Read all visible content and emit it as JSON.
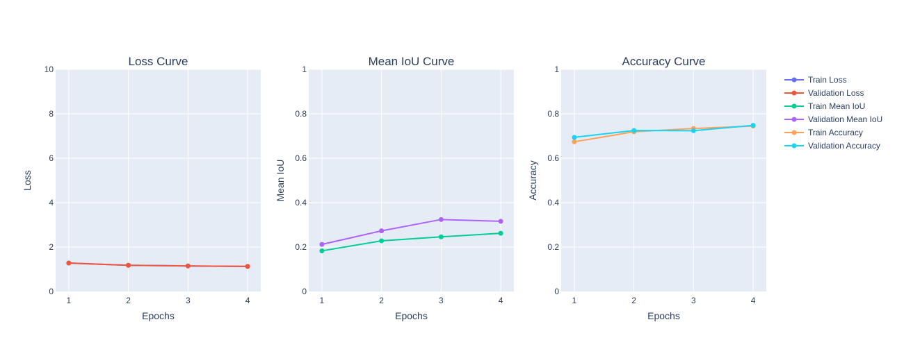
{
  "chart_data": [
    {
      "type": "line",
      "title": "Loss Curve",
      "xlabel": "Epochs",
      "ylabel": "Loss",
      "x": [
        1,
        2,
        3,
        4
      ],
      "xticks": [
        "1",
        "2",
        "3",
        "4"
      ],
      "ylim": [
        0,
        10
      ],
      "yticks": [
        0,
        2,
        4,
        6,
        8,
        10
      ],
      "ytick_labels": [
        "0",
        "2",
        "4",
        "6",
        "8",
        "10"
      ],
      "grid": true,
      "series": [
        {
          "name": "Train Loss",
          "color": "#636efa",
          "values": [
            1.28,
            1.18,
            1.15,
            1.13
          ]
        },
        {
          "name": "Validation Loss",
          "color": "#ef553b",
          "values": [
            1.28,
            1.18,
            1.15,
            1.13
          ]
        }
      ]
    },
    {
      "type": "line",
      "title": "Mean IoU Curve",
      "xlabel": "Epochs",
      "ylabel": "Mean IoU",
      "x": [
        1,
        2,
        3,
        4
      ],
      "xticks": [
        "1",
        "2",
        "3",
        "4"
      ],
      "ylim": [
        0,
        1
      ],
      "yticks": [
        0,
        0.2,
        0.4,
        0.6,
        0.8,
        1
      ],
      "ytick_labels": [
        "0",
        "0.2",
        "0.4",
        "0.6",
        "0.8",
        "1"
      ],
      "grid": true,
      "series": [
        {
          "name": "Train Mean IoU",
          "color": "#00cc96",
          "values": [
            0.183,
            0.228,
            0.246,
            0.262
          ]
        },
        {
          "name": "Validation Mean IoU",
          "color": "#ab63fa",
          "values": [
            0.212,
            0.273,
            0.324,
            0.316
          ]
        }
      ]
    },
    {
      "type": "line",
      "title": "Accuracy Curve",
      "xlabel": "Epochs",
      "ylabel": "Accuracy",
      "x": [
        1,
        2,
        3,
        4
      ],
      "xticks": [
        "1",
        "2",
        "3",
        "4"
      ],
      "ylim": [
        0,
        1
      ],
      "yticks": [
        0,
        0.2,
        0.4,
        0.6,
        0.8,
        1
      ],
      "ytick_labels": [
        "0",
        "0.2",
        "0.4",
        "0.6",
        "0.8",
        "1"
      ],
      "grid": true,
      "series": [
        {
          "name": "Train Accuracy",
          "color": "#ffa15a",
          "values": [
            0.674,
            0.719,
            0.734,
            0.745
          ]
        },
        {
          "name": "Validation Accuracy",
          "color": "#19d3f3",
          "values": [
            0.694,
            0.725,
            0.724,
            0.748
          ]
        }
      ]
    }
  ],
  "legend": {
    "placement": "right",
    "items": [
      {
        "name": "Train Loss",
        "color": "#636efa"
      },
      {
        "name": "Validation Loss",
        "color": "#ef553b"
      },
      {
        "name": "Train Mean IoU",
        "color": "#00cc96"
      },
      {
        "name": "Validation Mean IoU",
        "color": "#ab63fa"
      },
      {
        "name": "Train Accuracy",
        "color": "#ffa15a"
      },
      {
        "name": "Validation Accuracy",
        "color": "#19d3f3"
      }
    ]
  },
  "colors": {
    "plot_bg": "#e5ecf6",
    "grid": "#ffffff",
    "text": "#2a3f5f"
  }
}
